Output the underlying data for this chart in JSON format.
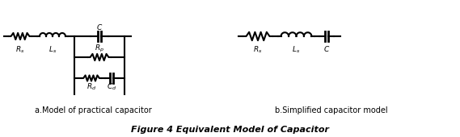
{
  "title": "Figure 4 Equivalent Model of Capacitor",
  "label_a": "a.Model of practical capacitor",
  "label_b": "b.Simplified capacitor model",
  "bg_color": "#ffffff",
  "line_color": "#000000",
  "lw": 1.5
}
